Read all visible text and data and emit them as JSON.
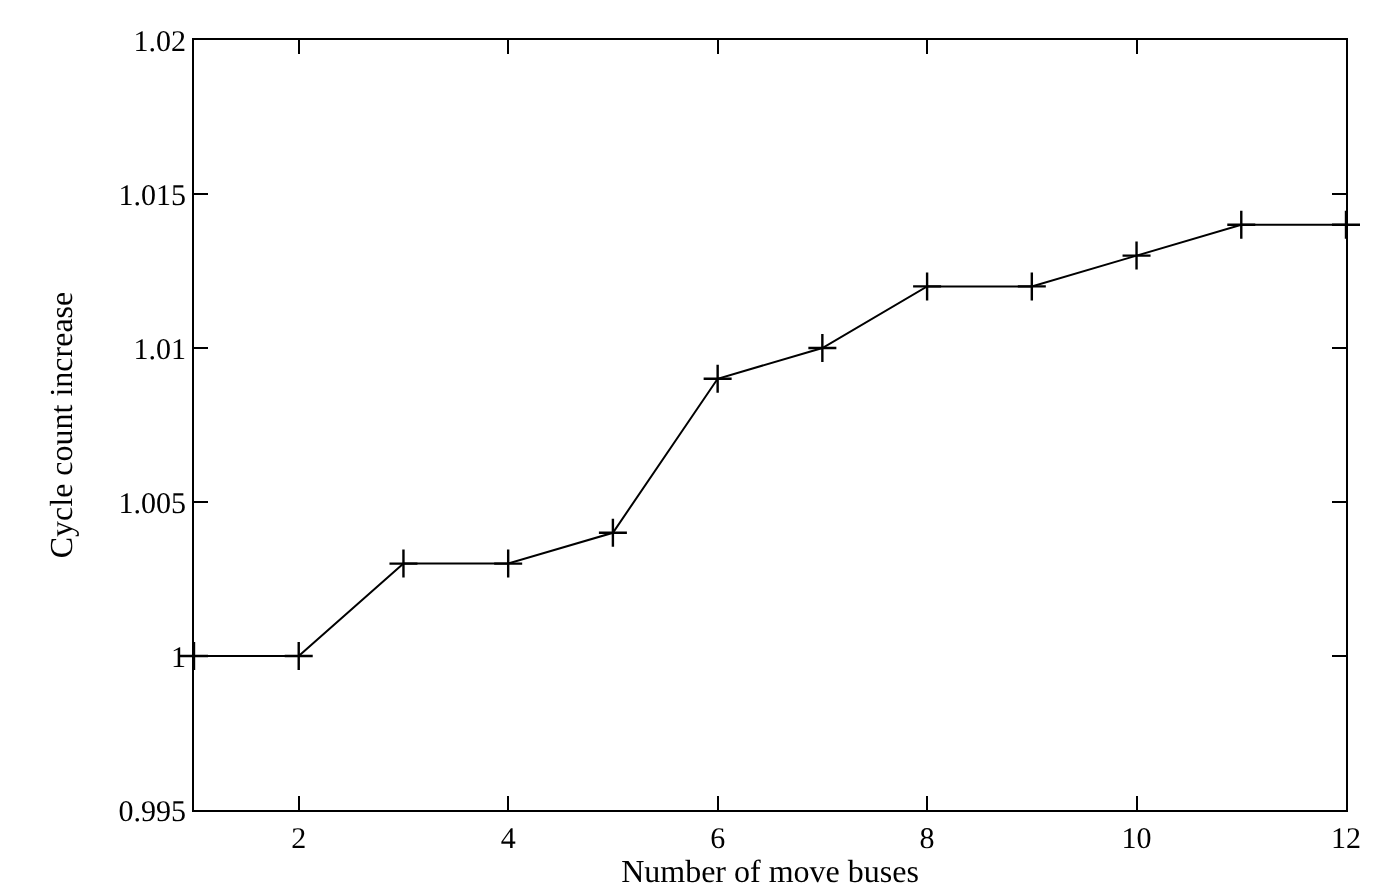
{
  "chart_data": {
    "type": "line",
    "xlabel": "Number of move buses",
    "ylabel": "Cycle count increase",
    "x": [
      1,
      2,
      3,
      4,
      5,
      6,
      7,
      8,
      9,
      10,
      11,
      12
    ],
    "series": [
      {
        "color": "#000000",
        "values": [
          1.0,
          1.0,
          1.003,
          1.003,
          1.004,
          1.009,
          1.01,
          1.012,
          1.012,
          1.013,
          1.014,
          1.014
        ]
      }
    ],
    "xlim": [
      1,
      12
    ],
    "xticks": [
      2,
      4,
      6,
      8,
      10,
      12
    ],
    "ylim": [
      0.995,
      1.02
    ],
    "yticks": [
      0.995,
      1,
      1.005,
      1.01,
      1.015,
      1.02
    ],
    "marker": "cross",
    "line_style": "solid"
  }
}
